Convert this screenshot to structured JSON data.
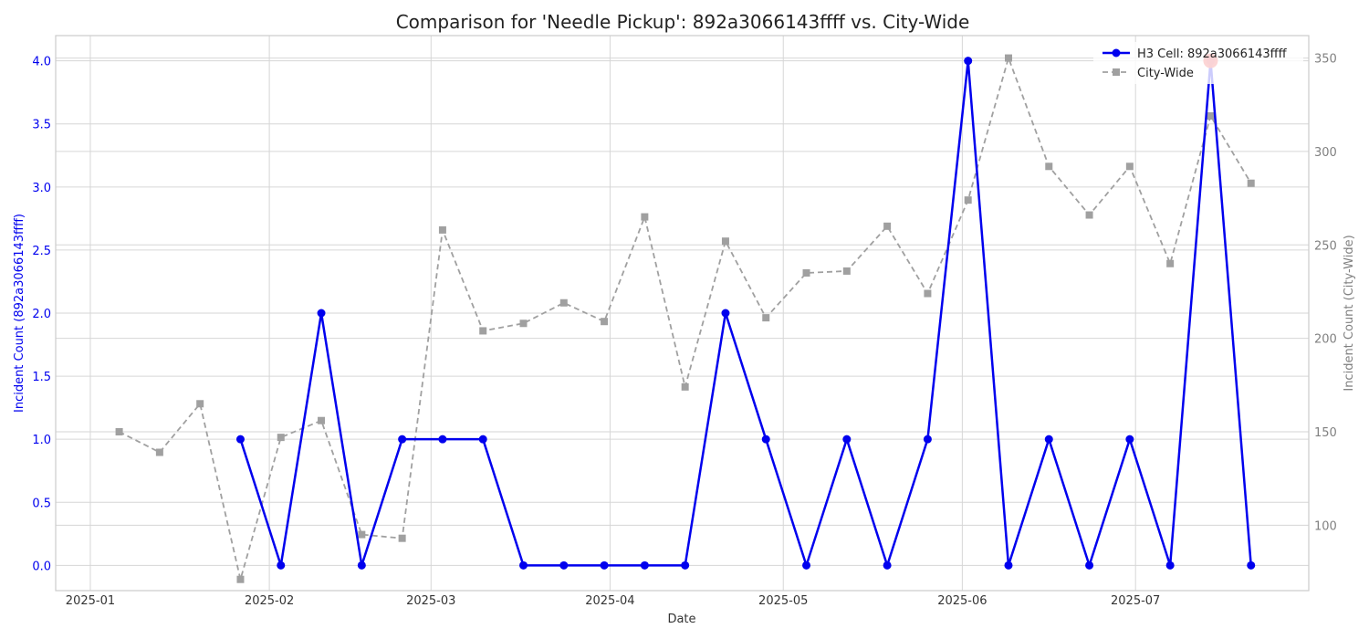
{
  "chart_data": {
    "type": "line",
    "title": "Comparison for 'Needle Pickup': 892a3066143ffff vs. City-Wide",
    "xlabel": "Date",
    "ylabel_left": "Incident Count (892a3066143ffff)",
    "ylabel_right": "Incident Count (City-Wide)",
    "x_ticks": [
      "2025-01",
      "2025-02",
      "2025-03",
      "2025-04",
      "2025-05",
      "2025-06",
      "2025-07"
    ],
    "xlim": [
      "2024-12-26",
      "2025-07-31"
    ],
    "ylim_left": [
      -0.2,
      4.2
    ],
    "ylim_right": [
      65,
      362
    ],
    "y_ticks_left": [
      "0.0",
      "0.5",
      "1.0",
      "1.5",
      "2.0",
      "2.5",
      "3.0",
      "3.5",
      "4.0"
    ],
    "y_ticks_right": [
      "100",
      "150",
      "200",
      "250",
      "300",
      "350"
    ],
    "grid": true,
    "legend_position": "top-right",
    "series": [
      {
        "name": "H3 Cell: 892a3066143ffff",
        "axis": "left",
        "color": "#0000ee",
        "style": "solid",
        "marker": "circle",
        "x": [
          "2025-01-27",
          "2025-02-03",
          "2025-02-10",
          "2025-02-17",
          "2025-02-24",
          "2025-03-03",
          "2025-03-10",
          "2025-03-17",
          "2025-03-24",
          "2025-03-31",
          "2025-04-07",
          "2025-04-14",
          "2025-04-21",
          "2025-04-28",
          "2025-05-05",
          "2025-05-12",
          "2025-05-19",
          "2025-05-26",
          "2025-06-02",
          "2025-06-09",
          "2025-06-16",
          "2025-06-23",
          "2025-06-30",
          "2025-07-07",
          "2025-07-14",
          "2025-07-21"
        ],
        "values": [
          1,
          0,
          2,
          0,
          1,
          1,
          1,
          0,
          0,
          0,
          0,
          0,
          2,
          1,
          0,
          1,
          0,
          1,
          4,
          0,
          1,
          0,
          1,
          0,
          4,
          0
        ]
      },
      {
        "name": "City-Wide",
        "axis": "right",
        "color": "#a0a0a0",
        "style": "dashed",
        "marker": "square",
        "x": [
          "2025-01-06",
          "2025-01-13",
          "2025-01-20",
          "2025-01-27",
          "2025-02-03",
          "2025-02-10",
          "2025-02-17",
          "2025-02-24",
          "2025-03-03",
          "2025-03-10",
          "2025-03-17",
          "2025-03-24",
          "2025-03-31",
          "2025-04-07",
          "2025-04-14",
          "2025-04-21",
          "2025-04-28",
          "2025-05-05",
          "2025-05-12",
          "2025-05-19",
          "2025-05-26",
          "2025-06-02",
          "2025-06-09",
          "2025-06-16",
          "2025-06-23",
          "2025-06-30",
          "2025-07-07",
          "2025-07-14",
          "2025-07-21"
        ],
        "values": [
          150,
          139,
          165,
          71,
          147,
          156,
          95,
          93,
          258,
          204,
          208,
          219,
          209,
          265,
          174,
          252,
          211,
          235,
          236,
          260,
          224,
          274,
          350,
          292,
          266,
          292,
          240,
          319,
          283
        ]
      }
    ],
    "highlight": {
      "series": "H3 Cell: 892a3066143ffff",
      "x": "2025-07-14",
      "value": 4,
      "color": "#ee2222"
    }
  }
}
